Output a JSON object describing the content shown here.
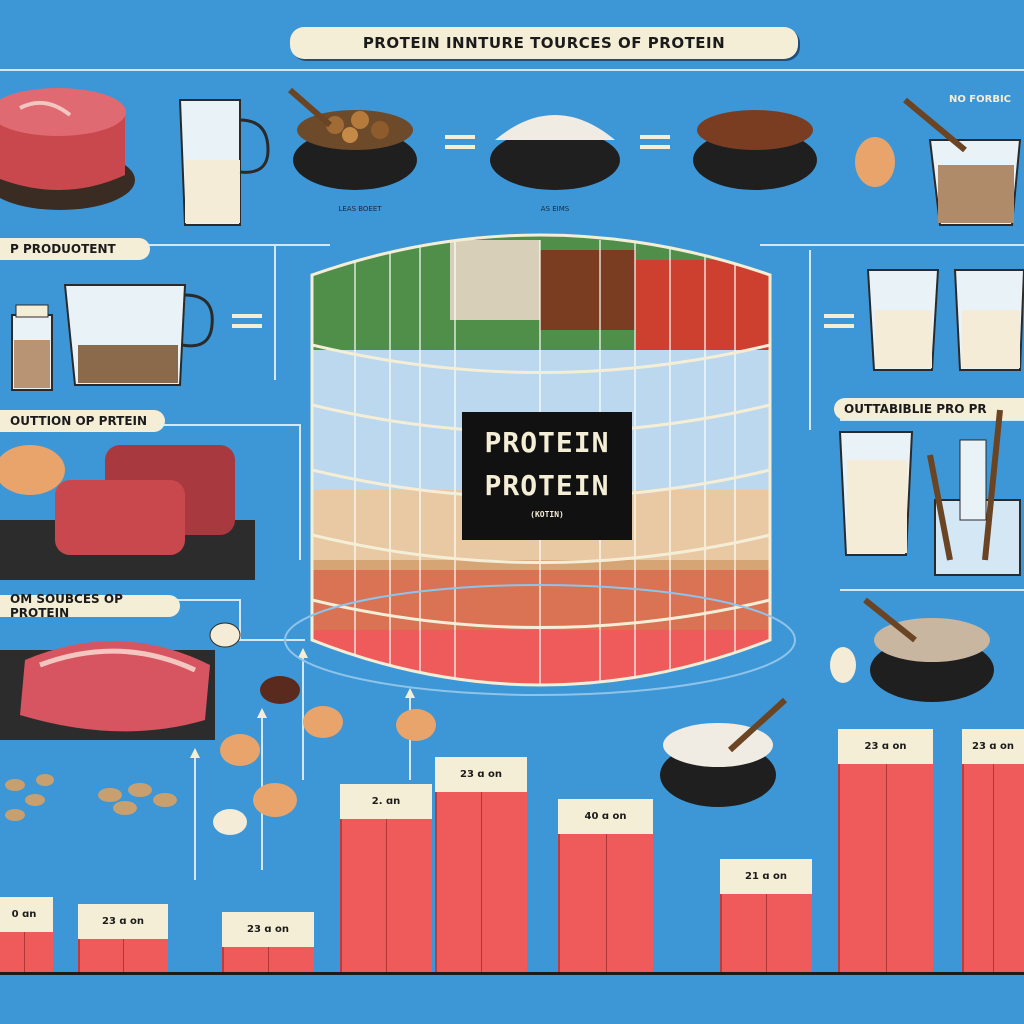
{
  "header": {
    "title": "PROTEIN INNTURE TOURCES  OF PROTEIN"
  },
  "left_panels": [
    {
      "label": "P PRODUOTENT"
    },
    {
      "label": "OUTTION OP PRTEIN"
    },
    {
      "label": "OM SOUBCES OP PROTEIN"
    }
  ],
  "right_panels": [
    {
      "label": "OUTTABIBLIE PRO PR"
    },
    {
      "label": "NO FORBIC"
    }
  ],
  "container": {
    "label_line1": "PROTEIN",
    "label_line2": "PROTEIN",
    "label_small": "(KOTIN)"
  },
  "captions": {
    "bowl1": "LEAS BOEET",
    "bowl2": "AS EIMS"
  },
  "bars": [
    {
      "label": "0 ɑn",
      "value": 0.3
    },
    {
      "label": "23 ɑ on",
      "value": 0.27
    },
    {
      "label": "23 ɑ on",
      "value": 0.24
    },
    {
      "label": "2. ɑn",
      "value": 0.75
    },
    {
      "label": "23 ɑ on",
      "value": 0.86
    },
    {
      "label": "40 ɑ on",
      "value": 0.69
    },
    {
      "label": "21 ɑ on",
      "value": 0.45
    },
    {
      "label": "23 ɑ on",
      "value": 0.97
    },
    {
      "label": "23 ɑ on",
      "value": 0.97
    }
  ],
  "colors": {
    "background": "#3d97d6",
    "bar": "#ef5b5b",
    "bar_cap": "#f5eed6",
    "line": "#d4e7f5"
  },
  "icons": [
    "steak-icon",
    "measuring-jug-icon",
    "nut-bowl-icon",
    "rice-bowl-icon",
    "bean-bowl-icon",
    "egg-icon",
    "protein-powder-cup-icon",
    "spice-jar-icon",
    "milk-glass-icon",
    "raw-meat-icon",
    "almond-icon",
    "eggs-icon",
    "spoon-bowl-icon",
    "protein-container-icon"
  ]
}
